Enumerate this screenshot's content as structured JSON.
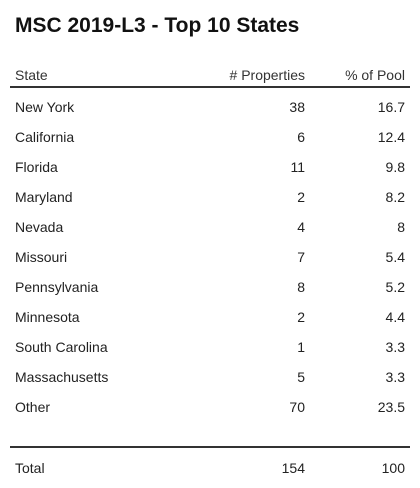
{
  "title": "MSC 2019-L3 - Top 10 States",
  "header": {
    "state": "State",
    "properties": "# Properties",
    "pool": "% of Pool"
  },
  "rows": [
    {
      "state": "New York",
      "properties": "38",
      "pool": "16.7"
    },
    {
      "state": "California",
      "properties": "6",
      "pool": "12.4"
    },
    {
      "state": "Florida",
      "properties": "11",
      "pool": "9.8"
    },
    {
      "state": "Maryland",
      "properties": "2",
      "pool": "8.2"
    },
    {
      "state": "Nevada",
      "properties": "4",
      "pool": "8"
    },
    {
      "state": "Missouri",
      "properties": "7",
      "pool": "5.4"
    },
    {
      "state": "Pennsylvania",
      "properties": "8",
      "pool": "5.2"
    },
    {
      "state": "Minnesota",
      "properties": "2",
      "pool": "4.4"
    },
    {
      "state": "South Carolina",
      "properties": "1",
      "pool": "3.3"
    },
    {
      "state": "Massachusetts",
      "properties": "5",
      "pool": "3.3"
    },
    {
      "state": "Other",
      "properties": "70",
      "pool": "23.5"
    }
  ],
  "total": {
    "label": "Total",
    "properties": "154",
    "pool": "100"
  },
  "chart_data": {
    "type": "table",
    "title": "MSC 2019-L3 - Top 10 States",
    "columns": [
      "State",
      "# Properties",
      "% of Pool"
    ],
    "rows": [
      [
        "New York",
        38,
        16.7
      ],
      [
        "California",
        6,
        12.4
      ],
      [
        "Florida",
        11,
        9.8
      ],
      [
        "Maryland",
        2,
        8.2
      ],
      [
        "Nevada",
        4,
        8
      ],
      [
        "Missouri",
        7,
        5.4
      ],
      [
        "Pennsylvania",
        8,
        5.2
      ],
      [
        "Minnesota",
        2,
        4.4
      ],
      [
        "South Carolina",
        1,
        3.3
      ],
      [
        "Massachusetts",
        5,
        3.3
      ],
      [
        "Other",
        70,
        23.5
      ]
    ],
    "total": [
      "Total",
      154,
      100
    ]
  }
}
